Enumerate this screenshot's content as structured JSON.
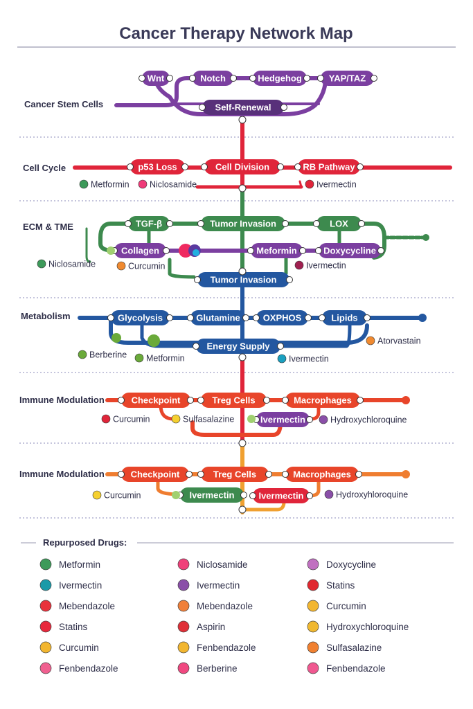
{
  "title": "Cancer Therapy Network Map",
  "colors": {
    "purple": "#7b3fa0",
    "dark_purple": "#58307a",
    "red": "#e0253a",
    "green": "#3d8a4e",
    "blue": "#2357a0",
    "orange_red": "#e8452a",
    "orange": "#ef7d30"
  },
  "sections": [
    {
      "label": "Cancer Stem Cells",
      "stations": [
        "Wnt",
        "Notch",
        "Hedgehog",
        "YAP/TAZ",
        "Self-Renewal"
      ],
      "drugs": []
    },
    {
      "label": "Cell Cycle",
      "stations": [
        "p53 Loss",
        "Cell Division",
        "RB Pathway"
      ],
      "drugs": [
        {
          "name": "Metformin",
          "color": "#3d9a5a"
        },
        {
          "name": "Niclosamide",
          "color": "#ef3a78"
        },
        {
          "name": "Ivermectin",
          "color": "#e0253a"
        }
      ]
    },
    {
      "label": "ECM & TME",
      "stations": [
        "TGF-β",
        "Tumor Invasion",
        "LOX",
        "Collagen",
        "Meformin",
        "Doxycycline",
        "Tumor Invasion"
      ],
      "drugs": [
        {
          "name": "Niclosamide",
          "color": "#3d9a5a"
        },
        {
          "name": "Curcumin",
          "color": "#f08a30"
        },
        {
          "name": "Ivermectin",
          "color": "#a02050"
        }
      ]
    },
    {
      "label": "Metabolism",
      "stations": [
        "Glycolysis",
        "Glutamine",
        "OXPHOS",
        "Lipids",
        "Energy Supply"
      ],
      "drugs": [
        {
          "name": "Berberine",
          "color": "#6aaa3a"
        },
        {
          "name": "Metformin",
          "color": "#6aaa3a"
        },
        {
          "name": "Ivermectin",
          "color": "#1aa0c0"
        },
        {
          "name": "Atorvastain",
          "color": "#f08a30"
        }
      ]
    },
    {
      "label": "Immune Modulation",
      "stations": [
        "Checkpoint",
        "Treg Cells",
        "Macrophages",
        "Ivermectin"
      ],
      "drugs": [
        {
          "name": "Curcumin",
          "color": "#e0253a"
        },
        {
          "name": "Sulfasalazine",
          "color": "#f5d030"
        },
        {
          "name": "Hydroxychloroquine",
          "color": "#8a4fa8"
        }
      ]
    },
    {
      "label": "Immune Modulation",
      "stations": [
        "Checkpoint",
        "Treg Cells",
        "Macrophages",
        "Ivermectin",
        "Ivermectin"
      ],
      "drugs": [
        {
          "name": "Curcumin",
          "color": "#f5d030"
        },
        {
          "name": "Hydroxyhloroquine",
          "color": "#8a4fa8"
        }
      ]
    }
  ],
  "legend": {
    "title": "Repurposed Drugs:",
    "columns": [
      [
        {
          "name": "Metformin",
          "color": "#3d9a5a"
        },
        {
          "name": "Ivermectin",
          "color": "#1a9aa8"
        },
        {
          "name": "Mebendazole",
          "color": "#e8323c"
        },
        {
          "name": "Statins",
          "color": "#e8283c"
        },
        {
          "name": "Curcumin",
          "color": "#f2b630"
        },
        {
          "name": "Fenbendazole",
          "color": "#f06090"
        }
      ],
      [
        {
          "name": "Niclosamide",
          "color": "#f0407a"
        },
        {
          "name": "Ivermectin",
          "color": "#8a4fa8"
        },
        {
          "name": "Mebendazole",
          "color": "#f0803a"
        },
        {
          "name": "Aspirin",
          "color": "#e03038"
        },
        {
          "name": "Fenbendazole",
          "color": "#f2b630"
        },
        {
          "name": "Berberine",
          "color": "#f04880"
        }
      ],
      [
        {
          "name": "Doxycycline",
          "color": "#c070c0"
        },
        {
          "name": "Statins",
          "color": "#e02830"
        },
        {
          "name": "Curcumin",
          "color": "#f2b630"
        },
        {
          "name": "Hydroxychloroquine",
          "color": "#f0b830"
        },
        {
          "name": "Sulfasalazine",
          "color": "#f08030"
        },
        {
          "name": "Fenbendazole",
          "color": "#f05890"
        }
      ]
    ]
  }
}
